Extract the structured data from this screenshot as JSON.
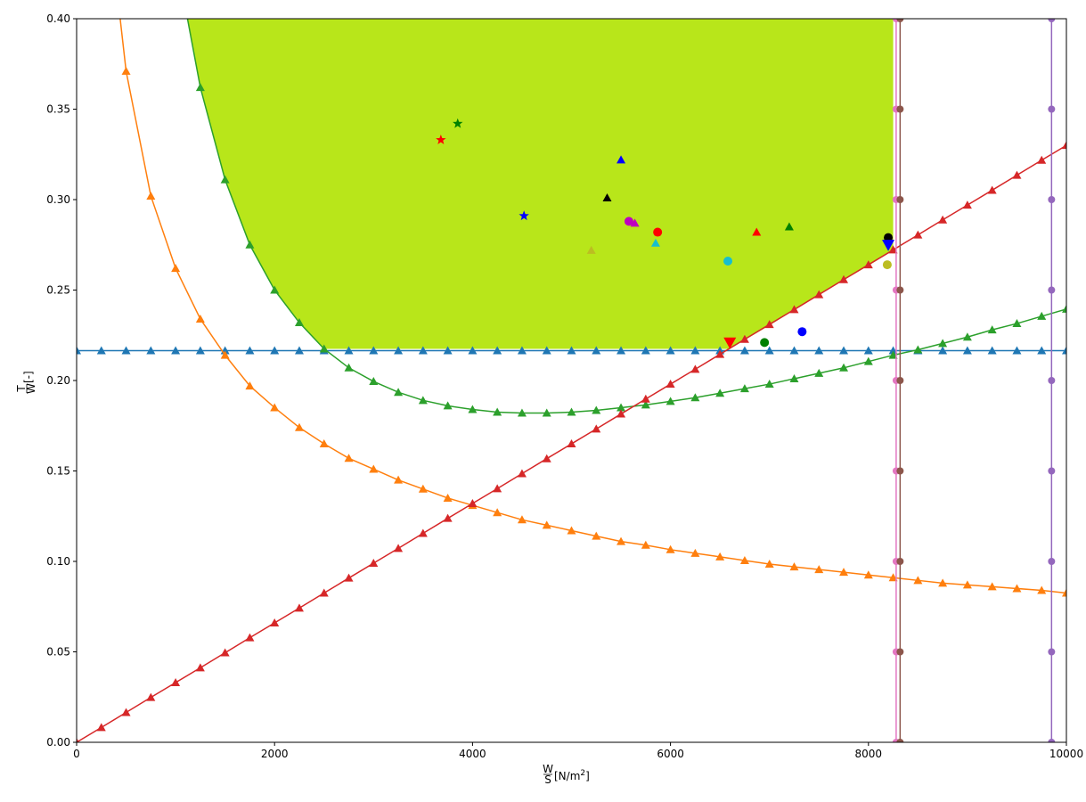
{
  "chart_data": {
    "type": "line",
    "xlabel": "W/S [N/m²]",
    "xlabel_parts": {
      "frac_num": "W",
      "frac_den": "S",
      "unit": " [N/m",
      "unit_sup": "2",
      "unit_close": "]"
    },
    "ylabel": "T/W [-]",
    "ylabel_parts": {
      "frac_num": "T",
      "frac_den": "W",
      "unit": " [-]"
    },
    "xlim": [
      0,
      10000
    ],
    "ylim": [
      0,
      0.4
    ],
    "x_ticks": [
      "0",
      "2000",
      "4000",
      "6000",
      "8000",
      "10000"
    ],
    "y_ticks": [
      "0.00",
      "0.05",
      "0.10",
      "0.15",
      "0.20",
      "0.25",
      "0.30",
      "0.35",
      "0.40"
    ],
    "grid": false,
    "feasible_region": {
      "color": "#b8e61a",
      "polygon": [
        [
          1120,
          0.4
        ],
        [
          1250,
          0.362
        ],
        [
          1500,
          0.311
        ],
        [
          1750,
          0.275
        ],
        [
          2000,
          0.25
        ],
        [
          2250,
          0.232
        ],
        [
          2500,
          0.2175
        ],
        [
          6600,
          0.2175
        ],
        [
          7000,
          0.2305
        ],
        [
          7500,
          0.2475
        ],
        [
          8000,
          0.2635
        ],
        [
          8250,
          0.272
        ],
        [
          8250,
          0.4
        ]
      ]
    },
    "series": [
      {
        "color": "#1f77b4",
        "marker": "triangle",
        "x": [
          0,
          250,
          500,
          750,
          1000,
          1250,
          1500,
          1750,
          2000,
          2250,
          2500,
          2750,
          3000,
          3250,
          3500,
          3750,
          4000,
          4250,
          4500,
          4750,
          5000,
          5250,
          5500,
          5750,
          6000,
          6250,
          6500,
          6750,
          7000,
          7250,
          7500,
          7750,
          8000,
          8250,
          8500,
          8750,
          9000,
          9250,
          9500,
          9750,
          10000
        ],
        "y": [
          0.2165,
          0.2165,
          0.2165,
          0.2165,
          0.2165,
          0.2165,
          0.2165,
          0.2165,
          0.2165,
          0.2165,
          0.2165,
          0.2165,
          0.2165,
          0.2165,
          0.2165,
          0.2165,
          0.2165,
          0.2165,
          0.2165,
          0.2165,
          0.2165,
          0.2165,
          0.2165,
          0.2165,
          0.2165,
          0.2165,
          0.2165,
          0.2165,
          0.2165,
          0.2165,
          0.2165,
          0.2165,
          0.2165,
          0.2165,
          0.2165,
          0.2165,
          0.2165,
          0.2165,
          0.2165,
          0.2165,
          0.2165
        ]
      },
      {
        "color": "#ff7f0e",
        "marker": "triangle",
        "x": [
          500,
          750,
          1000,
          1250,
          1500,
          1750,
          2000,
          2250,
          2500,
          2750,
          3000,
          3250,
          3500,
          3750,
          4000,
          4250,
          4500,
          4750,
          5000,
          5250,
          5500,
          5750,
          6000,
          6250,
          6500,
          6750,
          7000,
          7250,
          7500,
          7750,
          8000,
          8250,
          8500,
          8750,
          9000,
          9250,
          9500,
          9750,
          10000
        ],
        "y": [
          0.371,
          0.302,
          0.262,
          0.234,
          0.214,
          0.197,
          0.185,
          0.174,
          0.165,
          0.157,
          0.151,
          0.145,
          0.14,
          0.135,
          0.131,
          0.127,
          0.123,
          0.12,
          0.117,
          0.114,
          0.111,
          0.109,
          0.1065,
          0.1045,
          0.1025,
          0.1005,
          0.0985,
          0.097,
          0.0955,
          0.094,
          0.0925,
          0.091,
          0.0895,
          0.088,
          0.087,
          0.086,
          0.085,
          0.084,
          0.0825
        ],
        "curve_from": [
          440,
          0.4
        ]
      },
      {
        "color": "#2ca02c",
        "marker": "triangle",
        "x": [
          1250,
          1500,
          1750,
          2000,
          2250,
          2500,
          2750,
          3000,
          3250,
          3500,
          3750,
          4000,
          4250,
          4500,
          4750,
          5000,
          5250,
          5500,
          5750,
          6000,
          6250,
          6500,
          6750,
          7000,
          7250,
          7500,
          7750,
          8000,
          8250,
          8500,
          8750,
          9000,
          9250,
          9500,
          9750,
          10000
        ],
        "y": [
          0.362,
          0.311,
          0.275,
          0.25,
          0.232,
          0.2175,
          0.207,
          0.1995,
          0.1935,
          0.189,
          0.186,
          0.184,
          0.1825,
          0.182,
          0.182,
          0.1825,
          0.1835,
          0.185,
          0.1865,
          0.1885,
          0.1905,
          0.193,
          0.1955,
          0.198,
          0.201,
          0.204,
          0.207,
          0.2105,
          0.214,
          0.217,
          0.2205,
          0.224,
          0.228,
          0.2315,
          0.2355,
          0.2395
        ],
        "curve_from": [
          1120,
          0.4
        ]
      },
      {
        "color": "#d62728",
        "marker": "triangle",
        "x": [
          0,
          250,
          500,
          750,
          1000,
          1250,
          1500,
          1750,
          2000,
          2250,
          2500,
          2750,
          3000,
          3250,
          3500,
          3750,
          4000,
          4250,
          4500,
          4750,
          5000,
          5250,
          5500,
          5750,
          6000,
          6250,
          6500,
          6750,
          7000,
          7250,
          7500,
          7750,
          8000,
          8250,
          8500,
          8750,
          9000,
          9250,
          9500,
          9750,
          10000
        ],
        "y": [
          0.0,
          0.0082,
          0.0165,
          0.0248,
          0.033,
          0.0412,
          0.0495,
          0.0578,
          0.066,
          0.0742,
          0.0825,
          0.0908,
          0.099,
          0.1072,
          0.1155,
          0.1238,
          0.132,
          0.1402,
          0.1485,
          0.1568,
          0.165,
          0.1732,
          0.1815,
          0.1898,
          0.198,
          0.2062,
          0.2145,
          0.2228,
          0.231,
          0.2392,
          0.2475,
          0.2558,
          0.264,
          0.2722,
          0.2805,
          0.2888,
          0.297,
          0.3052,
          0.3135,
          0.3218,
          0.33
        ]
      },
      {
        "color": "#e377c2",
        "marker": "circle",
        "vertical": true,
        "x_const": 8280,
        "y": [
          0.0,
          0.05,
          0.1,
          0.15,
          0.2,
          0.25,
          0.3,
          0.35,
          0.4
        ]
      },
      {
        "color": "#8c564b",
        "marker": "circle",
        "vertical": true,
        "x_const": 8320,
        "y": [
          0.0,
          0.05,
          0.1,
          0.15,
          0.2,
          0.25,
          0.3,
          0.35,
          0.4
        ]
      },
      {
        "color": "#9467bd",
        "marker": "circle",
        "vertical": true,
        "x_const": 9850,
        "y": [
          0.0,
          0.05,
          0.1,
          0.15,
          0.2,
          0.25,
          0.3,
          0.35,
          0.4
        ]
      }
    ],
    "points": [
      {
        "x": 3680,
        "y": 0.333,
        "color": "#ff0000",
        "marker": "star"
      },
      {
        "x": 3850,
        "y": 0.342,
        "color": "#008000",
        "marker": "star"
      },
      {
        "x": 4520,
        "y": 0.291,
        "color": "#0000ff",
        "marker": "star"
      },
      {
        "x": 5200,
        "y": 0.272,
        "color": "#bcbd22",
        "marker": "triangle"
      },
      {
        "x": 5360,
        "y": 0.301,
        "color": "#000000",
        "marker": "triangle"
      },
      {
        "x": 5500,
        "y": 0.322,
        "color": "#0000ff",
        "marker": "triangle"
      },
      {
        "x": 5580,
        "y": 0.288,
        "color": "#bf00bf",
        "marker": "circle"
      },
      {
        "x": 5640,
        "y": 0.287,
        "color": "#bf00bf",
        "marker": "triangle"
      },
      {
        "x": 5850,
        "y": 0.276,
        "color": "#17becf",
        "marker": "triangle"
      },
      {
        "x": 5870,
        "y": 0.282,
        "color": "#ff0000",
        "marker": "circle"
      },
      {
        "x": 6600,
        "y": 0.221,
        "color": "#ff0000",
        "marker": "triangle-down"
      },
      {
        "x": 6580,
        "y": 0.266,
        "color": "#17becf",
        "marker": "circle"
      },
      {
        "x": 6870,
        "y": 0.282,
        "color": "#ff0000",
        "marker": "triangle"
      },
      {
        "x": 6950,
        "y": 0.221,
        "color": "#008000",
        "marker": "circle"
      },
      {
        "x": 7200,
        "y": 0.285,
        "color": "#008000",
        "marker": "triangle"
      },
      {
        "x": 7330,
        "y": 0.227,
        "color": "#0000ff",
        "marker": "circle"
      },
      {
        "x": 8200,
        "y": 0.279,
        "color": "#000000",
        "marker": "circle"
      },
      {
        "x": 8200,
        "y": 0.275,
        "color": "#0000ff",
        "marker": "triangle-down"
      },
      {
        "x": 8190,
        "y": 0.264,
        "color": "#bcbd22",
        "marker": "circle"
      }
    ]
  }
}
